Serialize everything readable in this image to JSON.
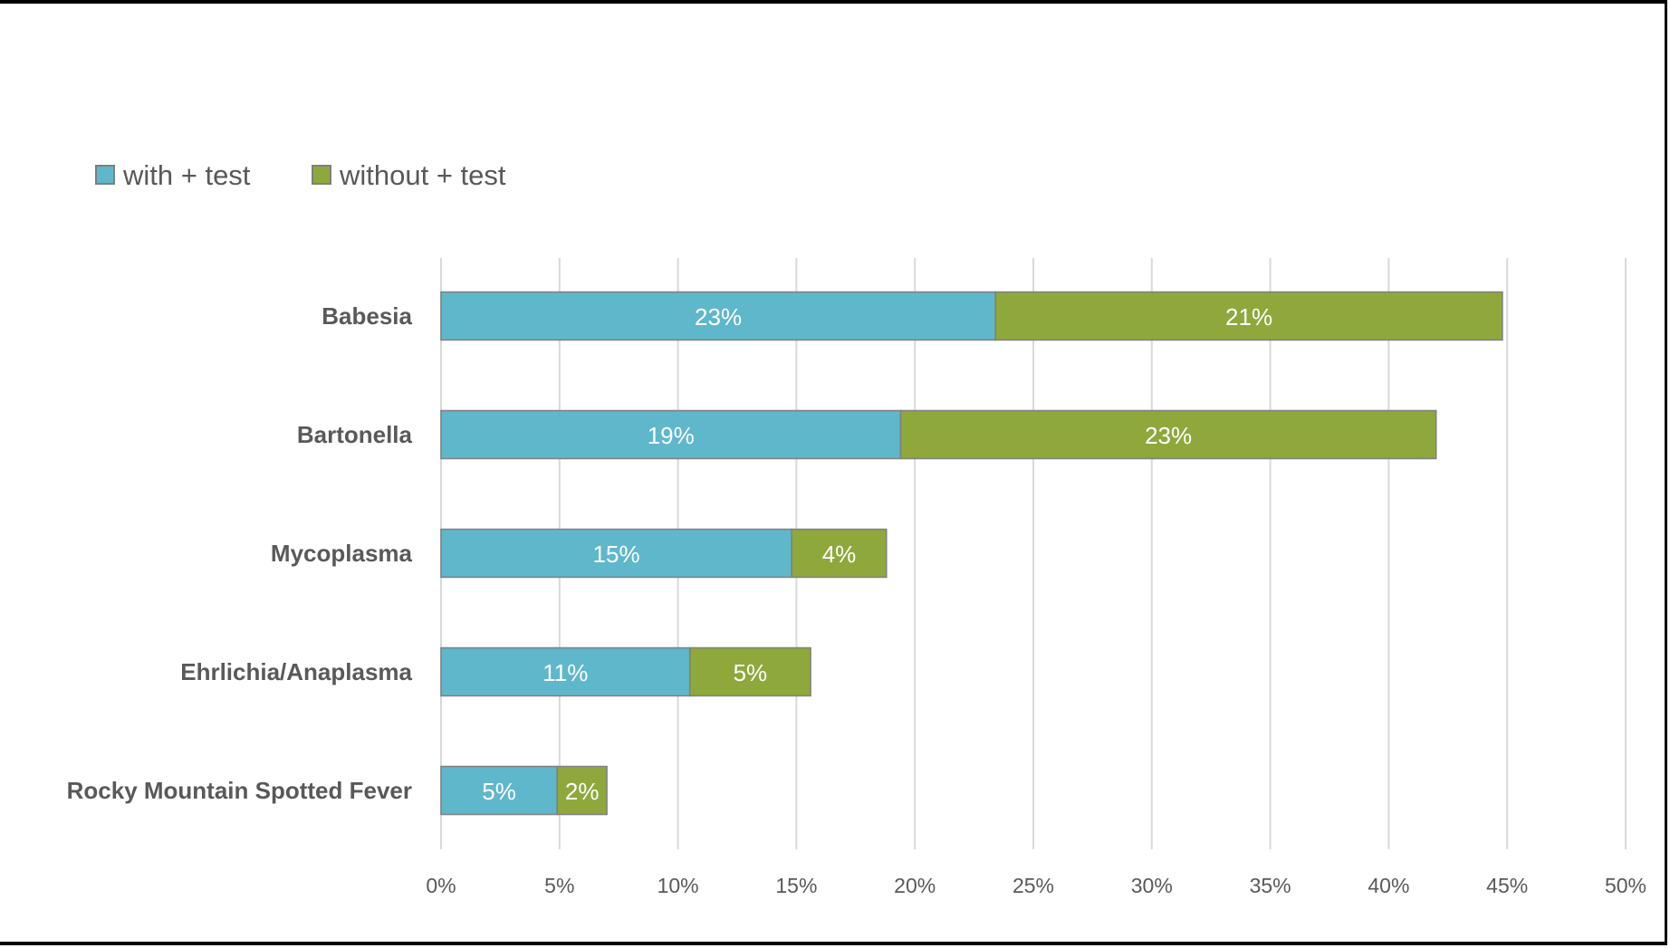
{
  "chart_data": {
    "type": "bar",
    "orientation": "horizontal",
    "stacked": true,
    "title": "",
    "categories": [
      "Babesia",
      "Bartonella",
      "Mycoplasma",
      "Ehrlichia/Anaplasma",
      "Rocky Mountain Spotted Fever"
    ],
    "series": [
      {
        "name": "with + test",
        "color": "#5fb7cc",
        "values": [
          23.4,
          19.4,
          14.8,
          10.5,
          4.9
        ],
        "labels": [
          "23%",
          "19%",
          "15%",
          "11%",
          "5%"
        ]
      },
      {
        "name": "without + test",
        "color": "#8ea83c",
        "values": [
          21.4,
          22.6,
          4.0,
          5.1,
          2.1
        ],
        "labels": [
          "21%",
          "23%",
          "4%",
          "5%",
          "2%"
        ]
      }
    ],
    "xlim": [
      0,
      50
    ],
    "xticks": [
      "0%",
      "5%",
      "10%",
      "15%",
      "20%",
      "25%",
      "30%",
      "35%",
      "40%",
      "45%",
      "50%"
    ],
    "xlabel": "",
    "ylabel": "",
    "grid": "vertical",
    "legend": "top-left"
  }
}
